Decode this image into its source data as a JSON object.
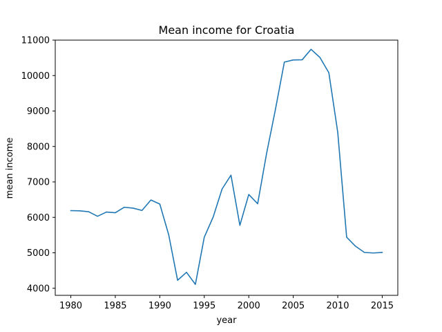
{
  "chart_data": {
    "type": "line",
    "title": "Mean income for Croatia",
    "xlabel": "year",
    "ylabel": "mean income",
    "xlim": [
      1978.25,
      2016.75
    ],
    "ylim": [
      3800,
      11000
    ],
    "xticks": [
      1980,
      1985,
      1990,
      1995,
      2000,
      2005,
      2010,
      2015
    ],
    "yticks": [
      4000,
      5000,
      6000,
      7000,
      8000,
      9000,
      10000,
      11000
    ],
    "grid": false,
    "line_color": "#1f77b4",
    "series": [
      {
        "x": [
          1980,
          1981,
          1982,
          1983,
          1984,
          1985,
          1986,
          1987,
          1988,
          1989,
          1990,
          1991,
          1992,
          1993,
          1994,
          1995,
          1996,
          1997,
          1998,
          1999,
          2000,
          2001,
          2002,
          2003,
          2004,
          2005,
          2006,
          2007,
          2008,
          2009,
          2010,
          2011,
          2012,
          2013,
          2014,
          2015
        ],
        "y": [
          6190,
          6185,
          6160,
          6030,
          6150,
          6130,
          6285,
          6260,
          6195,
          6490,
          6375,
          5510,
          4225,
          4450,
          4110,
          5440,
          6010,
          6800,
          7190,
          5775,
          6645,
          6385,
          7800,
          9050,
          10380,
          10440,
          10445,
          10740,
          10510,
          10080,
          8400,
          5440,
          5185,
          5010,
          4995,
          5010
        ]
      }
    ]
  }
}
